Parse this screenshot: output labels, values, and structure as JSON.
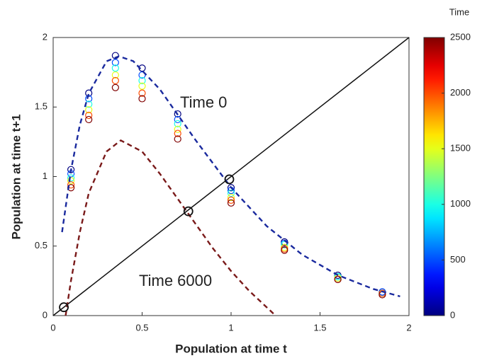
{
  "chart_data": {
    "type": "scatter",
    "xlabel": "Population at time t",
    "ylabel": "Population at time t+1",
    "xlim": [
      0,
      2
    ],
    "ylim": [
      0,
      2
    ],
    "xticks": [
      0,
      0.5,
      1,
      1.5,
      2
    ],
    "yticks": [
      0,
      0.5,
      1,
      1.5,
      2
    ],
    "points": {
      "x": [
        0.1,
        0.2,
        0.35,
        0.5,
        0.7,
        1.0,
        1.3,
        1.6,
        1.85,
        0.1,
        0.2,
        0.35,
        0.5,
        0.7,
        1.0,
        1.3,
        1.6,
        1.85,
        0.1,
        0.2,
        0.35,
        0.5,
        0.7,
        1.0,
        1.3,
        1.6,
        1.85,
        0.1,
        0.2,
        0.35,
        0.5,
        0.7,
        1.0,
        1.3,
        1.6,
        1.85,
        0.1,
        0.2,
        0.35,
        0.5,
        0.7,
        1.0,
        1.3,
        1.6,
        1.85,
        0.1,
        0.2,
        0.35,
        0.5,
        0.7,
        1.0,
        1.3,
        1.6,
        1.85
      ],
      "values": [
        1.05,
        1.6,
        1.87,
        1.78,
        1.45,
        0.92,
        0.53,
        0.29,
        0.17,
        1.02,
        1.56,
        1.82,
        1.73,
        1.41,
        0.9,
        0.52,
        0.28,
        0.17,
        0.99,
        1.52,
        1.78,
        1.69,
        1.38,
        0.88,
        0.51,
        0.28,
        0.16,
        0.97,
        1.48,
        1.73,
        1.65,
        1.34,
        0.85,
        0.49,
        0.27,
        0.16,
        0.94,
        1.44,
        1.69,
        1.6,
        1.31,
        0.83,
        0.48,
        0.26,
        0.16,
        0.92,
        1.41,
        1.64,
        1.56,
        1.27,
        0.81,
        0.47,
        0.26,
        0.15
      ],
      "time": [
        0,
        0,
        0,
        0,
        0,
        0,
        0,
        0,
        0,
        500,
        500,
        500,
        500,
        500,
        500,
        500,
        500,
        500,
        1000,
        1000,
        1000,
        1000,
        1000,
        1000,
        1000,
        1000,
        1000,
        1500,
        1500,
        1500,
        1500,
        1500,
        1500,
        1500,
        1500,
        1500,
        2000,
        2000,
        2000,
        2000,
        2000,
        2000,
        2000,
        2000,
        2000,
        2500,
        2500,
        2500,
        2500,
        2500,
        2500,
        2500,
        2500,
        2500
      ]
    },
    "lines": [
      {
        "name": "Time 0",
        "color": "#1a2a9e",
        "dashed": true,
        "x": [
          0.05,
          0.1,
          0.15,
          0.2,
          0.3,
          0.37,
          0.45,
          0.6,
          0.8,
          1.0,
          1.2,
          1.4,
          1.6,
          1.8,
          1.95
        ],
        "values": [
          0.6,
          1.045,
          1.371,
          1.597,
          1.829,
          1.865,
          1.83,
          1.627,
          1.263,
          0.921,
          0.644,
          0.438,
          0.291,
          0.191,
          0.138
        ]
      },
      {
        "name": "Time 6000",
        "color": "#7a1a1a",
        "dashed": true,
        "x": [
          0.07,
          0.1,
          0.15,
          0.2,
          0.3,
          0.38,
          0.5,
          0.6,
          0.7,
          0.8,
          0.9,
          1.0,
          1.1,
          1.2,
          1.25
        ],
        "values": [
          0,
          0.25,
          0.6,
          0.88,
          1.18,
          1.26,
          1.18,
          1.02,
          0.84,
          0.66,
          0.48,
          0.32,
          0.18,
          0.06,
          0
        ]
      }
    ],
    "diagonal": {
      "color": "#111111",
      "x": [
        0,
        2
      ],
      "values": [
        0,
        2
      ]
    },
    "equilibria": {
      "x": [
        0.06,
        0.76,
        0.99
      ],
      "values": [
        0.06,
        0.75,
        0.98
      ]
    },
    "colorbar": {
      "label": "Time",
      "colormap": "jet",
      "lim": [
        0,
        2500
      ],
      "ticks": [
        0,
        500,
        1000,
        1500,
        2000,
        2500
      ]
    }
  }
}
